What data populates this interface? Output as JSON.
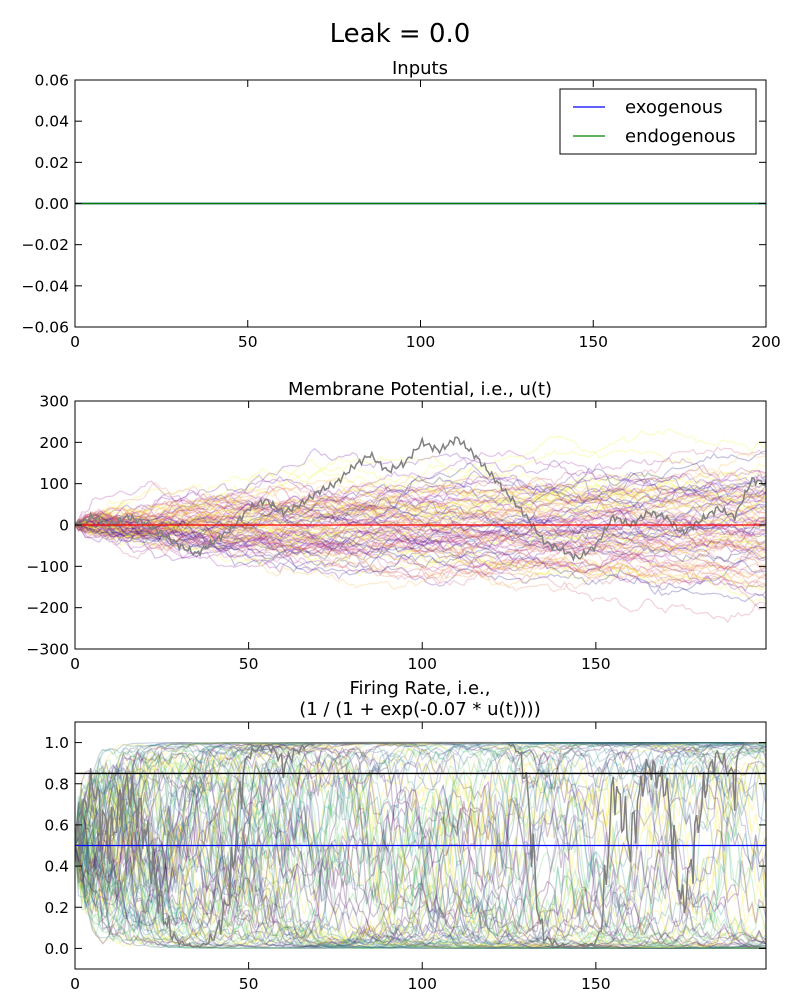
{
  "figure": {
    "title": "Leak = 0.0"
  },
  "chart_data": [
    {
      "type": "line",
      "title": "Inputs",
      "xlim": [
        0,
        200
      ],
      "ylim": [
        -0.06,
        0.06
      ],
      "xticks": [
        0,
        50,
        100,
        150,
        200
      ],
      "yticks": [
        -0.06,
        -0.04,
        -0.02,
        0.0,
        0.02,
        0.04,
        0.06
      ],
      "xtick_labels": [
        "0",
        "50",
        "100",
        "150",
        "200"
      ],
      "ytick_labels": [
        "−0.06",
        "−0.04",
        "−0.02",
        "0.00",
        "0.02",
        "0.04",
        "0.06"
      ],
      "legend": {
        "position": "top-right"
      },
      "series": [
        {
          "name": "exogenous",
          "color": "#0000ff",
          "x": [
            0,
            200
          ],
          "y": [
            0,
            0
          ]
        },
        {
          "name": "endogenous",
          "color": "#008000",
          "x": [
            0,
            200
          ],
          "y": [
            0,
            0
          ]
        }
      ]
    },
    {
      "type": "line",
      "title": "Membrane Potential, i.e., u(t)",
      "xlim": [
        0,
        199
      ],
      "ylim": [
        -300,
        300
      ],
      "xticks": [
        0,
        50,
        100,
        150
      ],
      "yticks": [
        -300,
        -200,
        -100,
        0,
        100,
        200,
        300
      ],
      "xtick_labels": [
        "0",
        "50",
        "100",
        "150"
      ],
      "ytick_labels": [
        "−300",
        "−200",
        "−100",
        "0",
        "100",
        "200",
        "300"
      ],
      "ensemble": {
        "traces": 100,
        "colormap": "plasma",
        "opacity": 0.25
      },
      "highlight": {
        "color": "#808080",
        "points": [
          [
            0,
            0
          ],
          [
            5,
            20
          ],
          [
            10,
            0
          ],
          [
            15,
            20
          ],
          [
            20,
            5
          ],
          [
            25,
            -20
          ],
          [
            30,
            -50
          ],
          [
            35,
            -70
          ],
          [
            40,
            -40
          ],
          [
            45,
            -10
          ],
          [
            50,
            40
          ],
          [
            55,
            60
          ],
          [
            60,
            30
          ],
          [
            65,
            50
          ],
          [
            70,
            80
          ],
          [
            75,
            100
          ],
          [
            80,
            140
          ],
          [
            85,
            170
          ],
          [
            90,
            130
          ],
          [
            95,
            150
          ],
          [
            100,
            200
          ],
          [
            105,
            180
          ],
          [
            110,
            210
          ],
          [
            115,
            170
          ],
          [
            120,
            120
          ],
          [
            125,
            70
          ],
          [
            130,
            20
          ],
          [
            135,
            -40
          ],
          [
            140,
            -60
          ],
          [
            145,
            -80
          ],
          [
            150,
            -50
          ],
          [
            155,
            20
          ],
          [
            160,
            0
          ],
          [
            165,
            30
          ],
          [
            170,
            20
          ],
          [
            175,
            -20
          ],
          [
            180,
            10
          ],
          [
            185,
            40
          ],
          [
            190,
            20
          ],
          [
            195,
            110
          ],
          [
            199,
            100
          ]
        ]
      },
      "reference_lines": [
        {
          "y": 0,
          "color": "#ff0000"
        }
      ]
    },
    {
      "type": "line",
      "title": "Firing Rate, i.e.,",
      "title_line2": "(1 / (1 + exp(-0.07 * u(t))))",
      "xlim": [
        0,
        199
      ],
      "ylim": [
        -0.1,
        1.1
      ],
      "xticks": [
        0,
        50,
        100,
        150
      ],
      "yticks": [
        0.0,
        0.2,
        0.4,
        0.6,
        0.8,
        1.0
      ],
      "xtick_labels": [
        "0",
        "50",
        "100",
        "150"
      ],
      "ytick_labels": [
        "0.0",
        "0.2",
        "0.4",
        "0.6",
        "0.8",
        "1.0"
      ],
      "ensemble": {
        "traces": 100,
        "colormap": "viridis",
        "opacity": 0.25
      },
      "highlight": {
        "color": "#808080",
        "gain": 0.07,
        "source": "membrane_potential_highlight"
      },
      "reference_lines": [
        {
          "y": 0.5,
          "color": "#0000ff"
        },
        {
          "y": 0.85,
          "color": "#000000"
        }
      ]
    }
  ]
}
